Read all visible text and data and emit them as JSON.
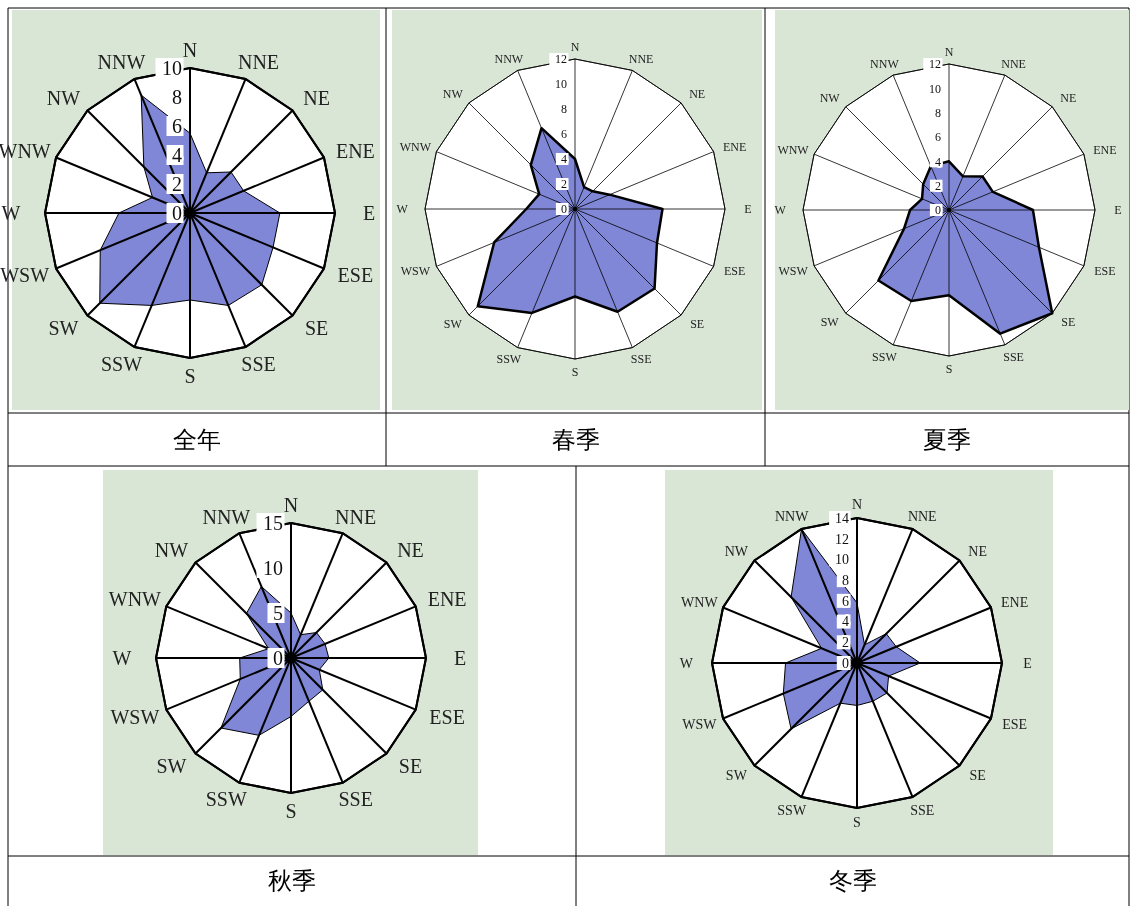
{
  "chart_data": [
    {
      "type": "radar",
      "title": "全年",
      "categories": [
        "N",
        "NNE",
        "NE",
        "ENE",
        "E",
        "ESE",
        "SE",
        "SSE",
        "S",
        "SSW",
        "SW",
        "WSW",
        "W",
        "WNW",
        "NW",
        "NNW"
      ],
      "ylim": [
        0,
        10
      ],
      "yticks": [
        0,
        2,
        4,
        6,
        8,
        10
      ],
      "grid": true,
      "series": [
        {
          "color": "#7f87d6",
          "values": [
            5.5,
            3,
            4,
            4,
            6.2,
            6.2,
            7,
            6.9,
            6,
            6.9,
            8.8,
            6.7,
            4.9,
            2.8,
            4.5,
            8.8
          ]
        }
      ]
    },
    {
      "type": "radar",
      "title": "春季",
      "categories": [
        "N",
        "NNE",
        "NE",
        "ENE",
        "E",
        "ESE",
        "SE",
        "SSE",
        "S",
        "SSW",
        "SW",
        "WSW",
        "W",
        "WNW",
        "NW",
        "NNW"
      ],
      "ylim": [
        0,
        12
      ],
      "yticks": [
        0,
        2,
        4,
        6,
        8,
        10,
        12
      ],
      "grid": true,
      "series": [
        {
          "color": "#7f87d6",
          "values": [
            4,
            1.9,
            2,
            3,
            7,
            7.1,
            9,
            8.9,
            7,
            9,
            11,
            7,
            3.9,
            3.1,
            5,
            7
          ]
        }
      ]
    },
    {
      "type": "radar",
      "title": "夏季",
      "categories": [
        "N",
        "NNE",
        "NE",
        "ENE",
        "E",
        "ESE",
        "SE",
        "SSE",
        "S",
        "SSW",
        "SW",
        "WSW",
        "W",
        "WNW",
        "NW",
        "NNW"
      ],
      "ylim": [
        0,
        12
      ],
      "yticks": [
        0,
        2,
        4,
        6,
        8,
        10,
        12
      ],
      "grid": true,
      "series": [
        {
          "color": "#7f87d6",
          "values": [
            4,
            3,
            3.9,
            3.9,
            6.9,
            8,
            12,
            11,
            7,
            8.1,
            8.2,
            4,
            3.2,
            2.4,
            3,
            3.9
          ]
        }
      ]
    },
    {
      "type": "radar",
      "title": "秋季",
      "categories": [
        "N",
        "NNE",
        "NE",
        "ENE",
        "E",
        "ESE",
        "SE",
        "SSE",
        "S",
        "SSW",
        "SW",
        "WSW",
        "W",
        "WNW",
        "NW",
        "NNW"
      ],
      "ylim": [
        0,
        15
      ],
      "yticks": [
        0,
        5,
        10,
        15
      ],
      "grid": true,
      "series": [
        {
          "color": "#7f87d6",
          "values": [
            5,
            2.8,
            4,
            4.1,
            4.2,
            3.4,
            5,
            5.2,
            6.5,
            9.3,
            11,
            6.1,
            5.7,
            2.7,
            7,
            8.6
          ]
        }
      ]
    },
    {
      "type": "radar",
      "title": "冬季",
      "categories": [
        "N",
        "NNE",
        "NE",
        "ENE",
        "E",
        "ESE",
        "SE",
        "SSE",
        "S",
        "SSW",
        "SW",
        "WSW",
        "W",
        "WNW",
        "NW",
        "NNW"
      ],
      "ylim": [
        0,
        14
      ],
      "yticks": [
        0,
        2,
        4,
        6,
        8,
        10,
        12,
        14
      ],
      "grid": true,
      "series": [
        {
          "color": "#7f87d6",
          "values": [
            5.8,
            1.9,
            4,
            4.1,
            6.1,
            3.3,
            4.1,
            4,
            4.1,
            4.2,
            9,
            7.7,
            6.9,
            3.7,
            9,
            14
          ]
        }
      ]
    }
  ]
}
